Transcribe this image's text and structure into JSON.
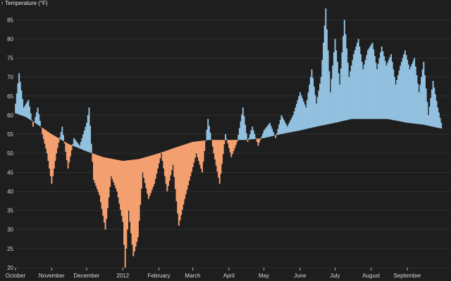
{
  "chart_data": {
    "type": "bar",
    "description_marks": "daily difference bars between a smoothed normal temperature line and the actual daily temperature",
    "ylabel": "↑ Temperature (°F)",
    "ylim": [
      20,
      88
    ],
    "y_ticks": [
      20,
      25,
      30,
      35,
      40,
      45,
      50,
      55,
      60,
      65,
      70,
      75,
      80,
      85
    ],
    "x_range": [
      "2011-10-01",
      "2012-09-30"
    ],
    "x_ticks": [
      {
        "date": "2011-10-01",
        "label": "October"
      },
      {
        "date": "2011-11-01",
        "label": "November"
      },
      {
        "date": "2011-12-01",
        "label": "December"
      },
      {
        "date": "2012-01-01",
        "label": "2012"
      },
      {
        "date": "2012-02-01",
        "label": "February"
      },
      {
        "date": "2012-03-01",
        "label": "March"
      },
      {
        "date": "2012-04-01",
        "label": "April"
      },
      {
        "date": "2012-05-01",
        "label": "May"
      },
      {
        "date": "2012-06-01",
        "label": "June"
      },
      {
        "date": "2012-07-01",
        "label": "July"
      },
      {
        "date": "2012-08-01",
        "label": "August"
      },
      {
        "date": "2012-09-01",
        "label": "September"
      }
    ],
    "colors": {
      "above_normal": "#92c0df",
      "below_normal": "#f4a071",
      "background": "#1e1e1e"
    },
    "normal_line": [
      [
        "2011-10-01",
        60.5
      ],
      [
        "2011-10-10",
        59.5
      ],
      [
        "2011-10-20",
        57.5
      ],
      [
        "2011-11-01",
        55.0
      ],
      [
        "2011-11-15",
        52.5
      ],
      [
        "2011-12-01",
        50.5
      ],
      [
        "2011-12-15",
        49.0
      ],
      [
        "2012-01-01",
        48.0
      ],
      [
        "2012-01-15",
        48.5
      ],
      [
        "2012-02-01",
        50.0
      ],
      [
        "2012-02-15",
        51.5
      ],
      [
        "2012-03-01",
        53.0
      ],
      [
        "2012-03-15",
        53.5
      ],
      [
        "2012-04-01",
        53.5
      ],
      [
        "2012-04-15",
        53.5
      ],
      [
        "2012-05-01",
        54.0
      ],
      [
        "2012-05-15",
        55.0
      ],
      [
        "2012-06-01",
        56.0
      ],
      [
        "2012-06-15",
        57.0
      ],
      [
        "2012-07-01",
        58.0
      ],
      [
        "2012-07-15",
        59.0
      ],
      [
        "2012-08-01",
        59.0
      ],
      [
        "2012-08-15",
        59.0
      ],
      [
        "2012-09-01",
        58.0
      ],
      [
        "2012-09-15",
        57.5
      ],
      [
        "2012-09-30",
        56.5
      ]
    ],
    "actual_line": [
      [
        "2011-10-01",
        63
      ],
      [
        "2011-10-04",
        71
      ],
      [
        "2011-10-08",
        62
      ],
      [
        "2011-10-12",
        64
      ],
      [
        "2011-10-16",
        57
      ],
      [
        "2011-10-20",
        62
      ],
      [
        "2011-10-24",
        55
      ],
      [
        "2011-10-28",
        50
      ],
      [
        "2011-11-01",
        42
      ],
      [
        "2011-11-05",
        50
      ],
      [
        "2011-11-10",
        57
      ],
      [
        "2011-11-15",
        46
      ],
      [
        "2011-11-20",
        54
      ],
      [
        "2011-11-25",
        52
      ],
      [
        "2011-12-01",
        58
      ],
      [
        "2011-12-03",
        62
      ],
      [
        "2011-12-07",
        43
      ],
      [
        "2011-12-12",
        39
      ],
      [
        "2011-12-17",
        30
      ],
      [
        "2011-12-22",
        44
      ],
      [
        "2011-12-27",
        40
      ],
      [
        "2012-01-01",
        32
      ],
      [
        "2012-01-03",
        20
      ],
      [
        "2012-01-06",
        35
      ],
      [
        "2012-01-10",
        23
      ],
      [
        "2012-01-14",
        28
      ],
      [
        "2012-01-18",
        45
      ],
      [
        "2012-01-23",
        38
      ],
      [
        "2012-01-28",
        42
      ],
      [
        "2012-02-03",
        50
      ],
      [
        "2012-02-08",
        40
      ],
      [
        "2012-02-13",
        47
      ],
      [
        "2012-02-18",
        31
      ],
      [
        "2012-02-23",
        38
      ],
      [
        "2012-02-28",
        44
      ],
      [
        "2012-03-04",
        50
      ],
      [
        "2012-03-09",
        45
      ],
      [
        "2012-03-14",
        59
      ],
      [
        "2012-03-19",
        50
      ],
      [
        "2012-03-24",
        42
      ],
      [
        "2012-03-29",
        55
      ],
      [
        "2012-04-03",
        49
      ],
      [
        "2012-04-08",
        53
      ],
      [
        "2012-04-13",
        62
      ],
      [
        "2012-04-17",
        53
      ],
      [
        "2012-04-21",
        57
      ],
      [
        "2012-04-26",
        52
      ],
      [
        "2012-05-01",
        56
      ],
      [
        "2012-05-06",
        58
      ],
      [
        "2012-05-11",
        54
      ],
      [
        "2012-05-16",
        60
      ],
      [
        "2012-05-21",
        57
      ],
      [
        "2012-05-26",
        60
      ],
      [
        "2012-06-01",
        66
      ],
      [
        "2012-06-06",
        62
      ],
      [
        "2012-06-11",
        72
      ],
      [
        "2012-06-15",
        63
      ],
      [
        "2012-06-19",
        70
      ],
      [
        "2012-06-23",
        88
      ],
      [
        "2012-06-27",
        66
      ],
      [
        "2012-07-01",
        80
      ],
      [
        "2012-07-05",
        68
      ],
      [
        "2012-07-09",
        85
      ],
      [
        "2012-07-13",
        70
      ],
      [
        "2012-07-17",
        76
      ],
      [
        "2012-07-21",
        80
      ],
      [
        "2012-07-25",
        72
      ],
      [
        "2012-07-29",
        77
      ],
      [
        "2012-08-02",
        79
      ],
      [
        "2012-08-06",
        72
      ],
      [
        "2012-08-10",
        78
      ],
      [
        "2012-08-14",
        73
      ],
      [
        "2012-08-18",
        76
      ],
      [
        "2012-08-22",
        68
      ],
      [
        "2012-08-26",
        73
      ],
      [
        "2012-08-30",
        77
      ],
      [
        "2012-09-03",
        72
      ],
      [
        "2012-09-07",
        75
      ],
      [
        "2012-09-11",
        66
      ],
      [
        "2012-09-15",
        74
      ],
      [
        "2012-09-19",
        60
      ],
      [
        "2012-09-23",
        69
      ],
      [
        "2012-09-27",
        62
      ],
      [
        "2012-09-30",
        58
      ]
    ]
  }
}
